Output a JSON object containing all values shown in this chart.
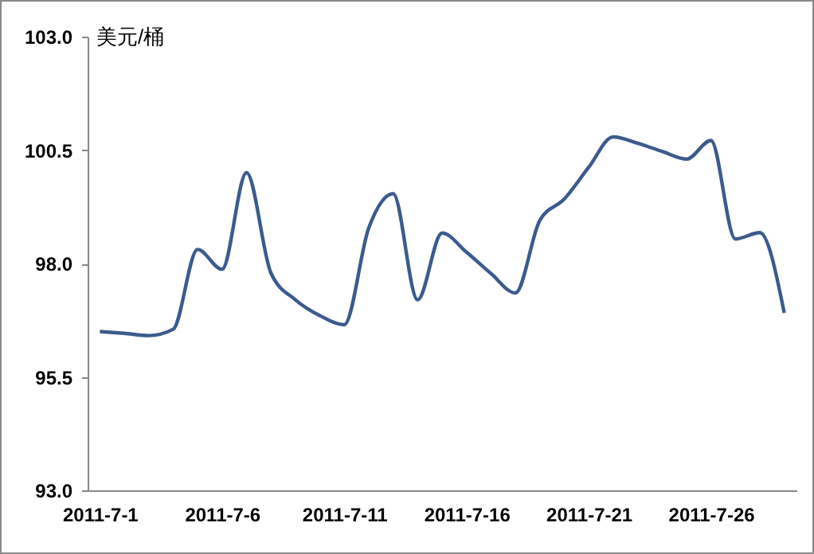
{
  "chart_data": {
    "type": "line",
    "ylabel": "美元/桶",
    "categories": [
      "2011-7-1",
      null,
      null,
      null,
      null,
      "2011-7-6",
      null,
      null,
      null,
      null,
      "2011-7-11",
      null,
      null,
      null,
      null,
      "2011-7-16",
      null,
      null,
      null,
      null,
      "2011-7-21",
      null,
      null,
      null,
      null,
      "2011-7-26",
      null,
      null,
      null
    ],
    "series": [
      {
        "color": "#3b5b8e",
        "values": [
          96.5,
          96.46,
          96.41,
          96.55,
          98.31,
          97.87,
          100.0,
          97.79,
          97.2,
          96.85,
          96.65,
          98.78,
          99.54,
          97.2,
          98.67,
          98.25,
          97.78,
          97.35,
          98.95,
          99.42,
          100.12,
          100.79,
          100.65,
          100.47,
          100.3,
          100.71,
          98.54,
          98.68,
          96.91
        ]
      }
    ],
    "ylim": [
      93,
      103
    ],
    "yticks": [
      {
        "value": 93,
        "label": "93.0"
      },
      {
        "value": 95.5,
        "label": "95.5"
      },
      {
        "value": 98,
        "label": "98.0"
      },
      {
        "value": 100.5,
        "label": "100.5"
      },
      {
        "value": 103,
        "label": "103.0"
      }
    ],
    "grid": false,
    "legend": false,
    "marker": "none",
    "line_style": "solid"
  }
}
